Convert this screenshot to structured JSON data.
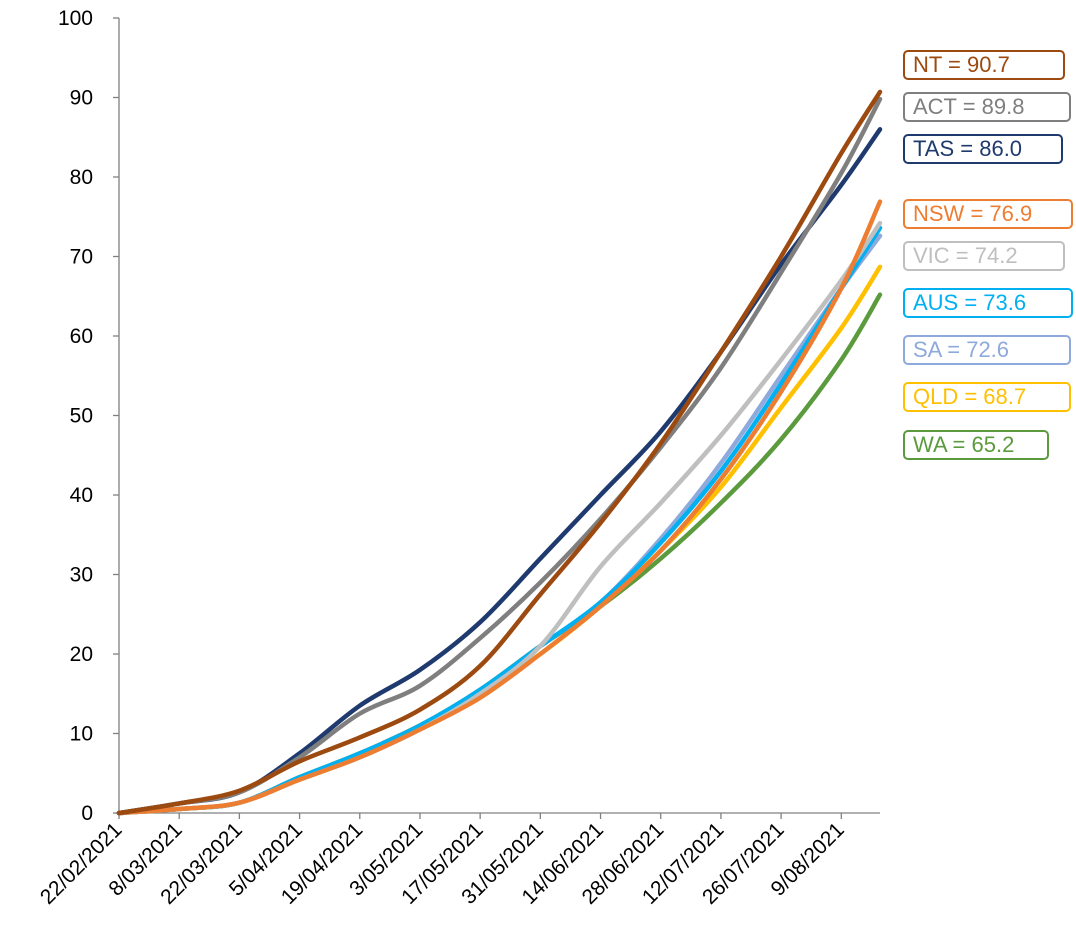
{
  "chart_data": {
    "type": "line",
    "title": "",
    "xlabel": "",
    "ylabel": "",
    "ylim": [
      0,
      100
    ],
    "yticks": [
      0,
      10,
      20,
      30,
      40,
      50,
      60,
      70,
      80,
      90,
      100
    ],
    "xlim": [
      "2021-02-22",
      "2021-08-18"
    ],
    "xtick_labels": [
      "22/02/2021",
      "8/03/2021",
      "22/03/2021",
      "5/04/2021",
      "19/04/2021",
      "3/05/2021",
      "17/05/2021",
      "31/05/2021",
      "14/06/2021",
      "28/06/2021",
      "12/07/2021",
      "26/07/2021",
      "9/08/2021"
    ],
    "xtick_dates": [
      "2021-02-22",
      "2021-03-08",
      "2021-03-22",
      "2021-04-05",
      "2021-04-19",
      "2021-05-03",
      "2021-05-17",
      "2021-05-31",
      "2021-06-14",
      "2021-06-28",
      "2021-07-12",
      "2021-07-26",
      "2021-08-09"
    ],
    "grid": false,
    "legend": "right, labels at line ends",
    "series": [
      {
        "name": "NT",
        "label": "NT = 90.7",
        "color": "#9C4A10",
        "x": [
          "2021-02-22",
          "2021-03-08",
          "2021-03-22",
          "2021-04-05",
          "2021-04-19",
          "2021-05-03",
          "2021-05-17",
          "2021-05-31",
          "2021-06-14",
          "2021-06-28",
          "2021-07-12",
          "2021-07-26",
          "2021-08-09",
          "2021-08-18"
        ],
        "y": [
          0,
          1.2,
          2.8,
          6.5,
          9.5,
          13,
          18.5,
          27.5,
          36.5,
          46.5,
          58,
          70,
          83,
          90.7
        ]
      },
      {
        "name": "ACT",
        "label": "ACT = 89.8",
        "color": "#7F7F7F",
        "x": [
          "2021-02-22",
          "2021-03-08",
          "2021-03-22",
          "2021-04-05",
          "2021-04-19",
          "2021-05-03",
          "2021-05-17",
          "2021-05-31",
          "2021-06-14",
          "2021-06-28",
          "2021-07-12",
          "2021-07-26",
          "2021-08-09",
          "2021-08-18"
        ],
        "y": [
          0,
          1.2,
          2.6,
          7,
          12.5,
          16,
          22,
          29,
          37,
          46,
          56,
          68,
          80.5,
          89.8
        ]
      },
      {
        "name": "TAS",
        "label": "TAS = 86.0",
        "color": "#1F3A6E",
        "x": [
          "2021-02-22",
          "2021-03-08",
          "2021-03-22",
          "2021-04-05",
          "2021-04-19",
          "2021-05-03",
          "2021-05-17",
          "2021-05-31",
          "2021-06-14",
          "2021-06-28",
          "2021-07-12",
          "2021-07-26",
          "2021-08-09",
          "2021-08-18"
        ],
        "y": [
          0,
          1.2,
          2.6,
          7.5,
          13.5,
          18,
          24,
          32,
          40,
          48,
          58,
          69,
          79,
          86
        ]
      },
      {
        "name": "NSW",
        "label": "NSW = 76.9",
        "color": "#ED7D31",
        "x": [
          "2021-02-22",
          "2021-03-08",
          "2021-03-22",
          "2021-04-05",
          "2021-04-19",
          "2021-05-03",
          "2021-05-17",
          "2021-05-31",
          "2021-06-14",
          "2021-06-28",
          "2021-07-12",
          "2021-07-26",
          "2021-08-09",
          "2021-08-18"
        ],
        "y": [
          0,
          0.5,
          1.3,
          4.2,
          7,
          10.5,
          14.5,
          20,
          26,
          33,
          42,
          53,
          66,
          76.9
        ]
      },
      {
        "name": "VIC",
        "label": "VIC = 74.2",
        "color": "#BFBFBF",
        "x": [
          "2021-02-22",
          "2021-03-08",
          "2021-03-22",
          "2021-04-05",
          "2021-04-19",
          "2021-05-03",
          "2021-05-17",
          "2021-05-31",
          "2021-06-14",
          "2021-06-28",
          "2021-07-12",
          "2021-07-26",
          "2021-08-09",
          "2021-08-18"
        ],
        "y": [
          0,
          0.5,
          1.3,
          4.2,
          7,
          10.5,
          15,
          21,
          31,
          39,
          47.5,
          57,
          67,
          74.2
        ]
      },
      {
        "name": "AUS",
        "label": "AUS = 73.6",
        "color": "#00B0F0",
        "x": [
          "2021-02-22",
          "2021-03-08",
          "2021-03-22",
          "2021-04-05",
          "2021-04-19",
          "2021-05-03",
          "2021-05-17",
          "2021-05-31",
          "2021-06-14",
          "2021-06-28",
          "2021-07-12",
          "2021-07-26",
          "2021-08-09",
          "2021-08-18"
        ],
        "y": [
          0,
          0.5,
          1.3,
          4.5,
          7.5,
          11,
          15.5,
          21,
          26.5,
          34,
          43,
          54,
          66,
          73.6
        ]
      },
      {
        "name": "SA",
        "label": "SA = 72.6",
        "color": "#8EA9DB",
        "x": [
          "2021-02-22",
          "2021-03-08",
          "2021-03-22",
          "2021-04-05",
          "2021-04-19",
          "2021-05-03",
          "2021-05-17",
          "2021-05-31",
          "2021-06-14",
          "2021-06-28",
          "2021-07-12",
          "2021-07-26",
          "2021-08-09",
          "2021-08-18"
        ],
        "y": [
          0,
          0.5,
          1.3,
          4.5,
          7.5,
          11,
          15.5,
          21,
          26.5,
          34.5,
          44,
          55,
          66,
          72.6
        ]
      },
      {
        "name": "QLD",
        "label": "QLD = 68.7",
        "color": "#FFC000",
        "x": [
          "2021-02-22",
          "2021-03-08",
          "2021-03-22",
          "2021-04-05",
          "2021-04-19",
          "2021-05-03",
          "2021-05-17",
          "2021-05-31",
          "2021-06-14",
          "2021-06-28",
          "2021-07-12",
          "2021-07-26",
          "2021-08-09",
          "2021-08-18"
        ],
        "y": [
          0,
          0.5,
          1.3,
          4.5,
          7.5,
          11,
          15,
          20,
          26,
          33,
          41,
          51,
          61,
          68.7
        ]
      },
      {
        "name": "WA",
        "label": "WA = 65.2",
        "color": "#5B9B3D",
        "x": [
          "2021-02-22",
          "2021-03-08",
          "2021-03-22",
          "2021-04-05",
          "2021-04-19",
          "2021-05-03",
          "2021-05-17",
          "2021-05-31",
          "2021-06-14",
          "2021-06-28",
          "2021-07-12",
          "2021-07-26",
          "2021-08-09",
          "2021-08-18"
        ],
        "y": [
          0,
          0.5,
          1.3,
          4.5,
          7.5,
          11,
          15.5,
          21,
          26,
          32,
          39,
          47,
          57,
          65.2
        ]
      }
    ]
  }
}
